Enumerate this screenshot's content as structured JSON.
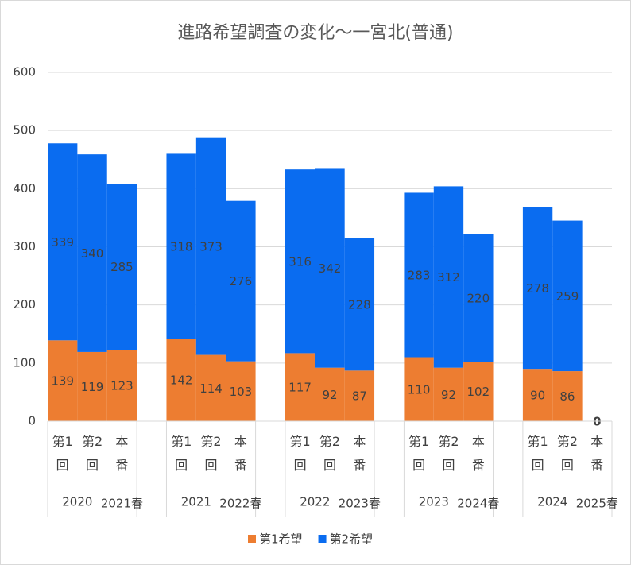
{
  "chart_data": {
    "type": "stacked_bar",
    "title": "進路希望調査の変化〜一宮北(普通)",
    "categories": [
      "第1回",
      "第2回",
      "本番",
      "第1回",
      "第2回",
      "本番",
      "第1回",
      "第2回",
      "本番",
      "第1回",
      "第2回",
      "本番",
      "第1回",
      "第2回",
      "本番"
    ],
    "group_labels": [
      [
        "2020",
        "2021春"
      ],
      [
        "2021",
        "2022春"
      ],
      [
        "2022",
        "2023春"
      ],
      [
        "2023",
        "2024春"
      ],
      [
        "2024",
        "2025春"
      ]
    ],
    "series": [
      {
        "name": "第1希望",
        "color": "#ed7d31",
        "values": [
          139,
          119,
          123,
          142,
          114,
          103,
          117,
          92,
          87,
          110,
          92,
          102,
          90,
          86,
          0
        ]
      },
      {
        "name": "第2希望",
        "color": "#0a6cf0",
        "values": [
          339,
          340,
          285,
          318,
          373,
          276,
          316,
          342,
          228,
          283,
          312,
          220,
          278,
          259,
          null
        ]
      }
    ],
    "ylim": [
      0,
      600
    ],
    "yticks": [
      0,
      100,
      200,
      300,
      400,
      500,
      600
    ],
    "grid": true,
    "legend": "bottom"
  }
}
